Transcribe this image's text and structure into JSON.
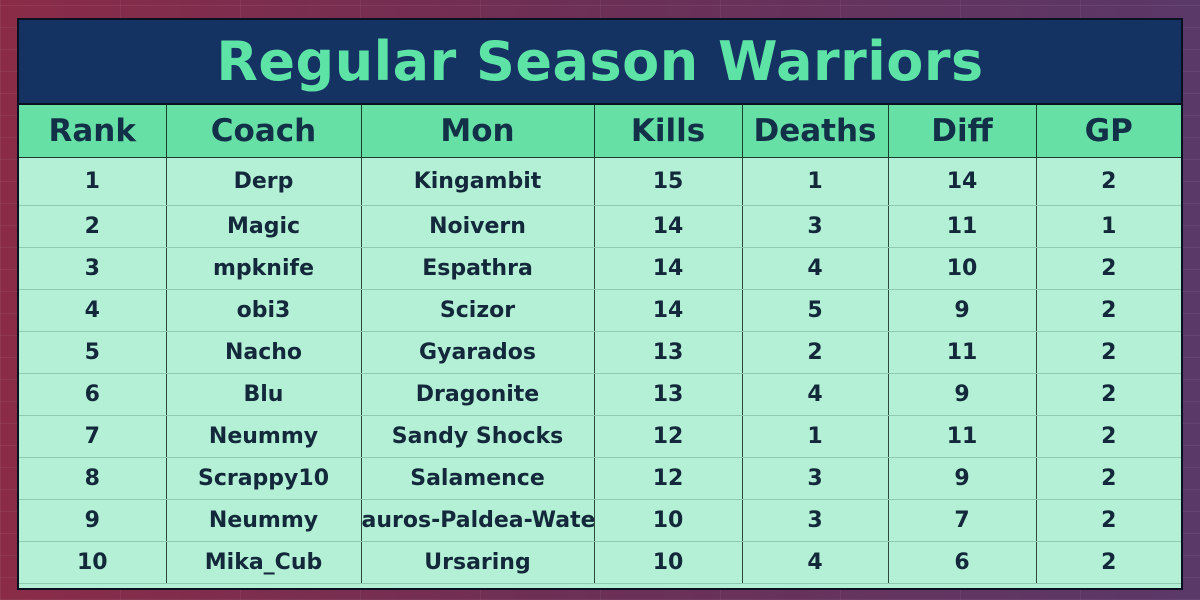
{
  "title": "Regular Season Warriors",
  "columns": {
    "rank": "Rank",
    "coach": "Coach",
    "mon": "Mon",
    "kills": "Kills",
    "deaths": "Deaths",
    "diff": "Diff",
    "gp": "GP"
  },
  "rows": [
    {
      "rank": "1",
      "coach": "Derp",
      "mon": "Kingambit",
      "kills": "15",
      "deaths": "1",
      "diff": "14",
      "gp": "2"
    },
    {
      "rank": "2",
      "coach": "Magic",
      "mon": "Noivern",
      "kills": "14",
      "deaths": "3",
      "diff": "11",
      "gp": "1"
    },
    {
      "rank": "3",
      "coach": "mpknife",
      "mon": "Espathra",
      "kills": "14",
      "deaths": "4",
      "diff": "10",
      "gp": "2"
    },
    {
      "rank": "4",
      "coach": "obi3",
      "mon": "Scizor",
      "kills": "14",
      "deaths": "5",
      "diff": "9",
      "gp": "2"
    },
    {
      "rank": "5",
      "coach": "Nacho",
      "mon": "Gyarados",
      "kills": "13",
      "deaths": "2",
      "diff": "11",
      "gp": "2"
    },
    {
      "rank": "6",
      "coach": "Blu",
      "mon": "Dragonite",
      "kills": "13",
      "deaths": "4",
      "diff": "9",
      "gp": "2"
    },
    {
      "rank": "7",
      "coach": "Neummy",
      "mon": "Sandy Shocks",
      "kills": "12",
      "deaths": "1",
      "diff": "11",
      "gp": "2"
    },
    {
      "rank": "8",
      "coach": "Scrappy10",
      "mon": "Salamence",
      "kills": "12",
      "deaths": "3",
      "diff": "9",
      "gp": "2"
    },
    {
      "rank": "9",
      "coach": "Neummy",
      "mon": "auros-Paldea-Wate",
      "kills": "10",
      "deaths": "3",
      "diff": "7",
      "gp": "2"
    },
    {
      "rank": "10",
      "coach": "Mika_Cub",
      "mon": "Ursaring",
      "kills": "10",
      "deaths": "4",
      "diff": "6",
      "gp": "2"
    }
  ],
  "colors": {
    "title_bg": "#143363",
    "title_text": "#5ee3a6",
    "header_bg": "#67e0a6",
    "row_bg": "#b3f0d6",
    "page_bg": "#7a2e50"
  }
}
